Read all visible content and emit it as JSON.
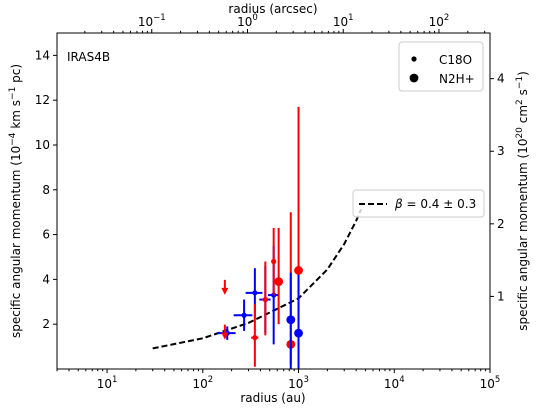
{
  "chart_data": {
    "type": "scatter",
    "panel_label": "IRAS4B",
    "x_axis": {
      "label": "radius (au)",
      "scale": "log",
      "range": [
        3,
        100000
      ],
      "ticks": [
        {
          "value": 10,
          "base": "10",
          "exp": "1"
        },
        {
          "value": 100,
          "base": "10",
          "exp": "2"
        },
        {
          "value": 1000,
          "base": "10",
          "exp": "3"
        },
        {
          "value": 10000,
          "base": "10",
          "exp": "4"
        },
        {
          "value": 100000,
          "base": "10",
          "exp": "5"
        }
      ]
    },
    "top_axis": {
      "label": "radius (arcsec)",
      "scale": "log",
      "au_per_arcsec": 293,
      "ticks": [
        {
          "value": 0.1,
          "base": "10",
          "exp": "−1"
        },
        {
          "value": 1,
          "base": "10",
          "exp": "0"
        },
        {
          "value": 10,
          "base": "10",
          "exp": "1"
        },
        {
          "value": 100,
          "base": "10",
          "exp": "2"
        }
      ]
    },
    "y_axis": {
      "label_pre": "specific angular momentum (10",
      "label_exp1": "−4",
      "label_mid": " km s",
      "label_exp2": "−1",
      "label_post": " pc)",
      "range": [
        0,
        15
      ],
      "ticks": [
        2,
        4,
        6,
        8,
        10,
        12,
        14
      ]
    },
    "right_axis": {
      "label_pre": "specific angular momentum (10",
      "label_exp1": "20",
      "label_mid": " cm",
      "label_exp2": "2",
      "label_mid2": " s",
      "label_exp3": "−1",
      "label_post": ")",
      "factor_per_left_unit": 0.3086,
      "ticks": [
        1,
        2,
        3,
        4
      ]
    },
    "legend": {
      "placement": "top-right",
      "entries": [
        {
          "label": "C18O",
          "marker": "small-dot"
        },
        {
          "label": "N2H+",
          "marker": "large-dot"
        }
      ]
    },
    "fit_legend": {
      "placement": "center-right",
      "label_symbol": "β",
      "label_rest": " = 0.4 ± 0.3"
    },
    "fit_curve": {
      "style": "dashed",
      "color": "#000000",
      "x_range": [
        30,
        4500
      ],
      "points": [
        [
          30,
          0.92
        ],
        [
          100,
          1.37
        ],
        [
          300,
          2.06
        ],
        [
          1000,
          3.15
        ],
        [
          2000,
          4.44
        ],
        [
          3000,
          5.58
        ],
        [
          4000,
          6.62
        ],
        [
          4500,
          7.13
        ]
      ]
    },
    "series": [
      {
        "molecule": "C18O",
        "marker": "small-dot",
        "color": "#0000ff",
        "points": [
          {
            "x": 180,
            "y": 1.6,
            "xerr": [
              40,
              40
            ],
            "yerr": [
              0.3,
              0.3
            ]
          },
          {
            "x": 270,
            "y": 2.4,
            "xerr": [
              60,
              60
            ],
            "yerr": [
              0.7,
              0.7
            ]
          },
          {
            "x": 350,
            "y": 3.4,
            "xerr": [
              70,
              70
            ],
            "yerr": [
              1.1,
              1.1
            ]
          },
          {
            "x": 450,
            "y": 3.1,
            "xerr": [
              60,
              60
            ],
            "yerr": [
              1.5,
              1.5
            ]
          },
          {
            "x": 550,
            "y": 3.3,
            "xerr": [
              70,
              70
            ],
            "yerr": [
              2.2,
              2.2
            ]
          }
        ]
      },
      {
        "molecule": "C18O",
        "marker": "small-dot",
        "color": "#ff0000",
        "points": [
          {
            "x": 170,
            "y": 1.4,
            "upper_limit": true
          },
          {
            "x": 350,
            "y": 1.4,
            "xerr": [
              30,
              30
            ],
            "yerr": [
              1.3,
              1.5
            ]
          },
          {
            "x": 450,
            "y": 3.1,
            "xerr": [
              30,
              30
            ],
            "yerr": [
              1.6,
              1.7
            ]
          },
          {
            "x": 550,
            "y": 4.8,
            "xerr": [
              30,
              30
            ],
            "yerr": [
              1.5,
              1.5
            ]
          },
          {
            "x": 170,
            "y": 3.4,
            "upper_limit": true
          }
        ]
      },
      {
        "molecule": "N2H+",
        "marker": "large-dot",
        "color": "#ff0000",
        "points": [
          {
            "x": 620,
            "y": 3.9,
            "yerr": [
              1.9,
              2.4
            ]
          },
          {
            "x": 830,
            "y": 1.1,
            "yerr": [
              0.9,
              5.9
            ]
          },
          {
            "x": 1000,
            "y": 4.4,
            "yerr": [
              3.0,
              7.3
            ]
          }
        ]
      },
      {
        "molecule": "N2H+",
        "marker": "large-dot",
        "color": "#0000ff",
        "points": [
          {
            "x": 830,
            "y": 2.2,
            "yerr": [
              2.2,
              2.1
            ]
          },
          {
            "x": 1000,
            "y": 1.6,
            "yerr": [
              1.6,
              2.6
            ]
          }
        ]
      }
    ]
  }
}
